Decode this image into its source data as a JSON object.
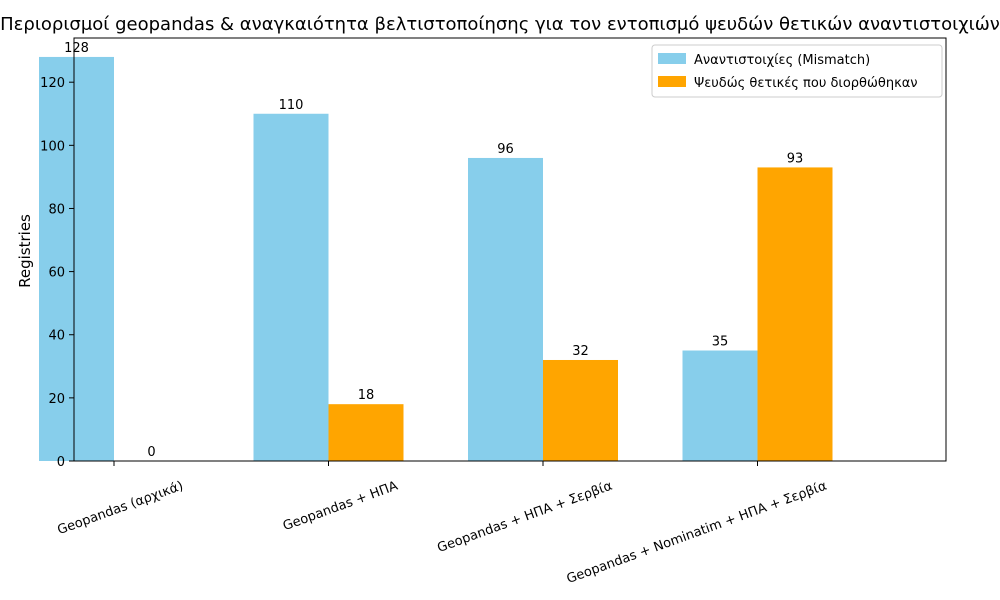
{
  "colors": {
    "series_1": "#87CEEB",
    "series_2": "#FFA500",
    "axis": "#000000",
    "legend_border": "#cccccc"
  },
  "chart_data": {
    "type": "bar",
    "title": "Περιορισμοί geopandas & αναγκαιότητα βελτιστοποίησης για τον εντοπισμό ψευδών θετικών αναντιστοιχιών",
    "xlabel": "",
    "ylabel": "Registries",
    "ylim": [
      0,
      134
    ],
    "yticks": [
      0,
      20,
      40,
      60,
      80,
      100,
      120
    ],
    "grid": false,
    "legend_position": "top-right",
    "categories": [
      "Geopandas (αρχικά)",
      "Geopandas + ΗΠΑ",
      "Geopandas + ΗΠΑ + Σερβία",
      "Geopandas + Nominatim + ΗΠΑ + Σερβία"
    ],
    "series": [
      {
        "name": "Αναντιστοιχίες (Mismatch)",
        "values": [
          128,
          110,
          96,
          35
        ]
      },
      {
        "name": "Ψευδώς θετικές που διορθώθηκαν",
        "values": [
          0,
          18,
          32,
          93
        ]
      }
    ]
  }
}
